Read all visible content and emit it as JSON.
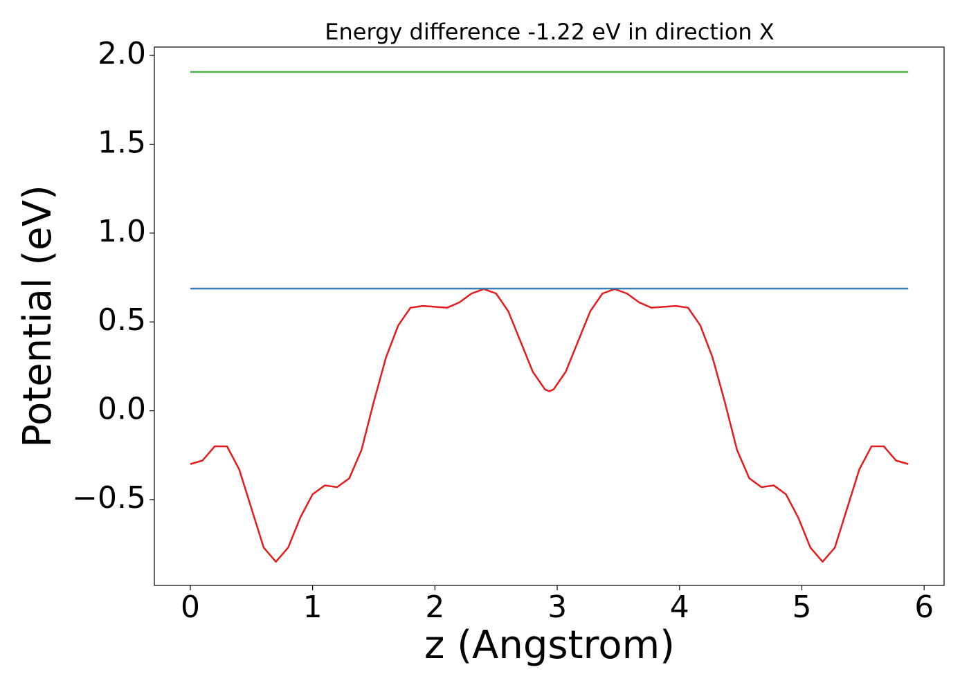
{
  "chart_data": {
    "type": "line",
    "title": "Energy difference -1.22 eV in direction X",
    "xlabel": "z (Angstrom)",
    "ylabel": "Potential (eV)",
    "xlim": [
      -0.294,
      6.163
    ],
    "ylim": [
      -0.983,
      2.047
    ],
    "xticks": [
      0,
      1,
      2,
      3,
      4,
      5,
      6
    ],
    "yticks": [
      {
        "value": -0.5,
        "label": "−0.5"
      },
      {
        "value": 0,
        "label": "0.0"
      },
      {
        "value": 0.5,
        "label": "0.5"
      },
      {
        "value": 1,
        "label": "1.0"
      },
      {
        "value": 1.5,
        "label": "1.5"
      },
      {
        "value": 2,
        "label": "2.0"
      }
    ],
    "grid": false,
    "series": [
      {
        "color": "#e41a1c",
        "x": [
          0,
          0.1,
          0.2,
          0.3,
          0.4,
          0.5,
          0.6,
          0.7,
          0.8,
          0.9,
          1.0,
          1.1,
          1.2,
          1.3,
          1.4,
          1.5,
          1.6,
          1.7,
          1.8,
          1.9,
          2.0,
          2.1,
          2.2,
          2.3,
          2.4,
          2.5,
          2.6,
          2.7,
          2.8,
          2.9,
          2.935,
          2.97,
          3.07,
          3.17,
          3.27,
          3.37,
          3.47,
          3.57,
          3.67,
          3.77,
          3.87,
          3.97,
          4.07,
          4.17,
          4.27,
          4.37,
          4.47,
          4.57,
          4.67,
          4.77,
          4.87,
          4.97,
          5.07,
          5.17,
          5.27,
          5.37,
          5.47,
          5.57,
          5.67,
          5.77,
          5.87
        ],
        "values": [
          -0.3,
          -0.28,
          -0.2,
          -0.2,
          -0.33,
          -0.55,
          -0.77,
          -0.85,
          -0.77,
          -0.6,
          -0.47,
          -0.42,
          -0.43,
          -0.38,
          -0.22,
          0.05,
          0.3,
          0.48,
          0.58,
          0.59,
          0.585,
          0.58,
          0.61,
          0.66,
          0.685,
          0.66,
          0.56,
          0.39,
          0.22,
          0.12,
          0.11,
          0.12,
          0.22,
          0.39,
          0.56,
          0.66,
          0.685,
          0.66,
          0.61,
          0.58,
          0.585,
          0.59,
          0.58,
          0.48,
          0.3,
          0.05,
          -0.22,
          -0.38,
          -0.43,
          -0.42,
          -0.47,
          -0.6,
          -0.77,
          -0.85,
          -0.77,
          -0.55,
          -0.33,
          -0.2,
          -0.2,
          -0.28,
          -0.3
        ]
      },
      {
        "color": "#377eb8",
        "x": [
          0,
          5.87
        ],
        "values": [
          0.688,
          0.688
        ]
      },
      {
        "color": "#4daf4a",
        "x": [
          0,
          5.87
        ],
        "values": [
          1.907,
          1.907
        ]
      }
    ]
  }
}
